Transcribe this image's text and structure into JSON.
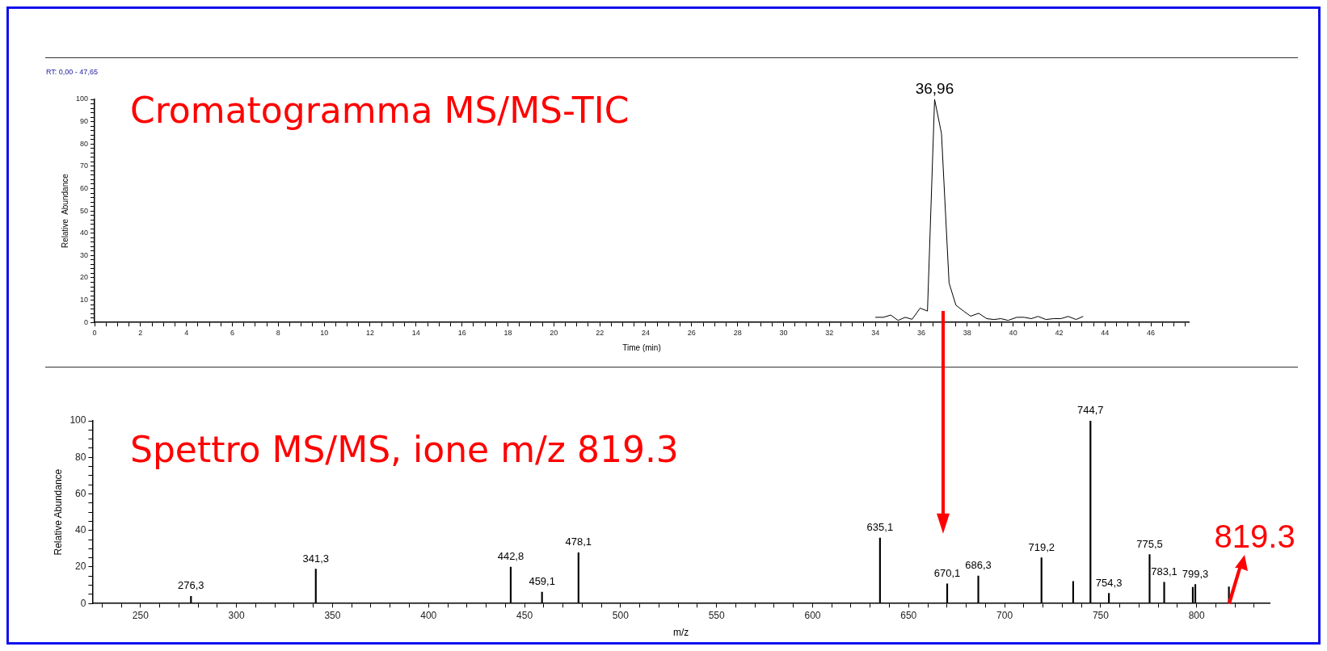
{
  "chart_data": [
    {
      "type": "line",
      "title": "Cromatogramma MS/MS-TIC",
      "xlabel": "Time (min)",
      "ylabel": "Relative  Abundance",
      "annotations": [
        "RT: 0,00 - 47,65",
        {
          "text": "36,96",
          "x": 36.58,
          "y": 100
        }
      ],
      "x": [
        34.0,
        34.35,
        34.67,
        34.99,
        35.3,
        35.6,
        35.95,
        36.27,
        36.58,
        36.88,
        37.21,
        37.51,
        37.84,
        38.15,
        38.5,
        38.85,
        39.16,
        39.47,
        39.78,
        40.16,
        40.48,
        40.79,
        41.09,
        41.43,
        41.76,
        42.08,
        42.4,
        42.74,
        43.05
      ],
      "values": [
        2.3,
        2.3,
        3.3,
        0.9,
        2.3,
        1.4,
        6.4,
        5.1,
        100,
        84.7,
        17.7,
        7.7,
        5.1,
        2.8,
        4.1,
        1.7,
        1.3,
        1.7,
        0.9,
        2.3,
        2.3,
        1.7,
        2.7,
        1.3,
        1.7,
        1.7,
        2.7,
        1.3,
        2.7
      ],
      "color": "#000000",
      "xlim": [
        0,
        47.65
      ],
      "ylim": [
        0,
        100
      ],
      "xticks": [
        0,
        {
          "value": 0.5,
          "label": null
        },
        {
          "value": 1,
          "label": null
        },
        {
          "value": 1.5,
          "label": null
        },
        2,
        {
          "value": 2.5,
          "label": null
        },
        {
          "value": 3,
          "label": null
        },
        {
          "value": 3.5,
          "label": null
        },
        4,
        {
          "value": 4.5,
          "label": null
        },
        {
          "value": 5,
          "label": null
        },
        {
          "value": 5.5,
          "label": null
        },
        6,
        {
          "value": 6.5,
          "label": null
        },
        {
          "value": 7,
          "label": null
        },
        {
          "value": 7.5,
          "label": null
        },
        8,
        {
          "value": 8.5,
          "label": null
        },
        {
          "value": 9,
          "label": null
        },
        {
          "value": 9.5,
          "label": null
        },
        10,
        {
          "value": 10.5,
          "label": null
        },
        {
          "value": 11,
          "label": null
        },
        {
          "value": 11.5,
          "label": null
        },
        12,
        {
          "value": 12.5,
          "label": null
        },
        {
          "value": 13,
          "label": null
        },
        {
          "value": 13.5,
          "label": null
        },
        14,
        {
          "value": 14.5,
          "label": null
        },
        {
          "value": 15,
          "label": null
        },
        {
          "value": 15.5,
          "label": null
        },
        16,
        {
          "value": 16.5,
          "label": null
        },
        {
          "value": 17,
          "label": null
        },
        {
          "value": 17.5,
          "label": null
        },
        18,
        {
          "value": 18.5,
          "label": null
        },
        {
          "value": 19,
          "label": null
        },
        {
          "value": 19.5,
          "label": null
        },
        20,
        {
          "value": 20.5,
          "label": null
        },
        {
          "value": 21,
          "label": null
        },
        {
          "value": 21.5,
          "label": null
        },
        22,
        {
          "value": 22.5,
          "label": null
        },
        {
          "value": 23,
          "label": null
        },
        {
          "value": 23.5,
          "label": null
        },
        24,
        {
          "value": 24.5,
          "label": null
        },
        {
          "value": 25,
          "label": null
        },
        {
          "value": 25.5,
          "label": null
        },
        26,
        {
          "value": 26.5,
          "label": null
        },
        {
          "value": 27,
          "label": null
        },
        {
          "value": 27.5,
          "label": null
        },
        28,
        {
          "value": 28.5,
          "label": null
        },
        {
          "value": 29,
          "label": null
        },
        {
          "value": 29.5,
          "label": null
        },
        30,
        {
          "value": 30.5,
          "label": null
        },
        {
          "value": 31,
          "label": null
        },
        {
          "value": 31.5,
          "label": null
        },
        32,
        {
          "value": 32.5,
          "label": null
        },
        {
          "value": 33,
          "label": null
        },
        {
          "value": 33.5,
          "label": null
        },
        34,
        {
          "value": 34.5,
          "label": null
        },
        {
          "value": 35,
          "label": null
        },
        {
          "value": 35.5,
          "label": null
        },
        36,
        {
          "value": 36.5,
          "label": null
        },
        {
          "value": 37,
          "label": null
        },
        {
          "value": 37.5,
          "label": null
        },
        38,
        {
          "value": 38.5,
          "label": null
        },
        {
          "value": 39,
          "label": null
        },
        {
          "value": 39.5,
          "label": null
        },
        40,
        {
          "value": 40.5,
          "label": null
        },
        {
          "value": 41,
          "label": null
        },
        {
          "value": 41.5,
          "label": null
        },
        42,
        {
          "value": 42.5,
          "label": null
        },
        {
          "value": 43,
          "label": null
        },
        {
          "value": 43.5,
          "label": null
        },
        44,
        {
          "value": 44.5,
          "label": null
        },
        {
          "value": 45,
          "label": null
        },
        {
          "value": 45.5,
          "label": null
        },
        46,
        {
          "value": 46.5,
          "label": null
        },
        {
          "value": 47,
          "label": null
        },
        {
          "value": 47.5,
          "label": null
        }
      ],
      "yticks": [
        0,
        {
          "value": 2,
          "label": null
        },
        {
          "value": 4,
          "label": null
        },
        {
          "value": 6,
          "label": null
        },
        {
          "value": 8,
          "label": null
        },
        10,
        {
          "value": 12,
          "label": null
        },
        {
          "value": 14,
          "label": null
        },
        {
          "value": 16,
          "label": null
        },
        {
          "value": 18,
          "label": null
        },
        20,
        {
          "value": 22,
          "label": null
        },
        {
          "value": 24,
          "label": null
        },
        {
          "value": 26,
          "label": null
        },
        {
          "value": 28,
          "label": null
        },
        30,
        {
          "value": 32,
          "label": null
        },
        {
          "value": 34,
          "label": null
        },
        {
          "value": 36,
          "label": null
        },
        {
          "value": 38,
          "label": null
        },
        40,
        {
          "value": 42,
          "label": null
        },
        {
          "value": 44,
          "label": null
        },
        {
          "value": 46,
          "label": null
        },
        {
          "value": 48,
          "label": null
        },
        50,
        {
          "value": 52,
          "label": null
        },
        {
          "value": 54,
          "label": null
        },
        {
          "value": 56,
          "label": null
        },
        {
          "value": 58,
          "label": null
        },
        60,
        {
          "value": 62,
          "label": null
        },
        {
          "value": 64,
          "label": null
        },
        {
          "value": 66,
          "label": null
        },
        {
          "value": 68,
          "label": null
        },
        70,
        {
          "value": 72,
          "label": null
        },
        {
          "value": 74,
          "label": null
        },
        {
          "value": 76,
          "label": null
        },
        {
          "value": 78,
          "label": null
        },
        80,
        {
          "value": 82,
          "label": null
        },
        {
          "value": 84,
          "label": null
        },
        {
          "value": 86,
          "label": null
        },
        {
          "value": 88,
          "label": null
        },
        90,
        {
          "value": 92,
          "label": null
        },
        {
          "value": 94,
          "label": null
        },
        {
          "value": 96,
          "label": null
        },
        {
          "value": 98,
          "label": null
        },
        100
      ]
    },
    {
      "type": "bar",
      "title": "Spettro MS/MS, ione m/z 819.3",
      "xlabel": "m/z",
      "ylabel": "Relative Abundance",
      "annotations": [
        {
          "text": "819.3",
          "x": 816.8,
          "y": 9.1
        },
        {
          "text": "276,3",
          "x": 276.3,
          "y": 3.9
        },
        {
          "text": "341,3",
          "x": 341.3,
          "y": 18.8
        },
        {
          "text": "442,8",
          "x": 442.8,
          "y": 19.9
        },
        {
          "text": "459,1",
          "x": 459.1,
          "y": 6.2
        },
        {
          "text": "478,1",
          "x": 478.1,
          "y": 27.8
        },
        {
          "text": "635,1",
          "x": 635.1,
          "y": 35.9
        },
        {
          "text": "670,1",
          "x": 670.1,
          "y": 10.8
        },
        {
          "text": "686,3",
          "x": 686.3,
          "y": 15.1
        },
        {
          "text": "719,2",
          "x": 719.2,
          "y": 25
        },
        {
          "text": "744,7",
          "x": 744.7,
          "y": 100
        },
        {
          "text": "754,3",
          "x": 754.3,
          "y": 5.6
        },
        {
          "text": "775,5",
          "x": 775.5,
          "y": 26.8
        },
        {
          "text": "783,1",
          "x": 783.1,
          "y": 11.7
        },
        {
          "text": "799,3",
          "x": 799.3,
          "y": 10.4
        }
      ],
      "x": [
        276.3,
        341.3,
        442.8,
        459.1,
        478.1,
        635.1,
        670.1,
        686.3,
        719.2,
        735.7,
        744.7,
        754.3,
        775.5,
        783.1,
        798.0,
        799.3,
        816.8
      ],
      "values": [
        3.9,
        18.8,
        19.9,
        6.2,
        27.8,
        35.9,
        10.8,
        15.1,
        25,
        12.1,
        100,
        5.6,
        26.8,
        11.7,
        8.9,
        10.4,
        9.1
      ],
      "color": "#000000",
      "xlim": [
        225,
        838
      ],
      "ylim": [
        0,
        100
      ],
      "xticks": [
        {
          "value": 230,
          "label": null
        },
        {
          "value": 240,
          "label": null
        },
        250,
        {
          "value": 260,
          "label": null
        },
        {
          "value": 270,
          "label": null
        },
        {
          "value": 280,
          "label": null
        },
        {
          "value": 290,
          "label": null
        },
        300,
        {
          "value": 310,
          "label": null
        },
        {
          "value": 320,
          "label": null
        },
        {
          "value": 330,
          "label": null
        },
        {
          "value": 340,
          "label": null
        },
        350,
        {
          "value": 360,
          "label": null
        },
        {
          "value": 370,
          "label": null
        },
        {
          "value": 380,
          "label": null
        },
        {
          "value": 390,
          "label": null
        },
        400,
        {
          "value": 410,
          "label": null
        },
        {
          "value": 420,
          "label": null
        },
        {
          "value": 430,
          "label": null
        },
        {
          "value": 440,
          "label": null
        },
        450,
        {
          "value": 460,
          "label": null
        },
        {
          "value": 470,
          "label": null
        },
        {
          "value": 480,
          "label": null
        },
        {
          "value": 490,
          "label": null
        },
        500,
        {
          "value": 510,
          "label": null
        },
        {
          "value": 520,
          "label": null
        },
        {
          "value": 530,
          "label": null
        },
        {
          "value": 540,
          "label": null
        },
        550,
        {
          "value": 560,
          "label": null
        },
        {
          "value": 570,
          "label": null
        },
        {
          "value": 580,
          "label": null
        },
        {
          "value": 590,
          "label": null
        },
        600,
        {
          "value": 610,
          "label": null
        },
        {
          "value": 620,
          "label": null
        },
        {
          "value": 630,
          "label": null
        },
        {
          "value": 640,
          "label": null
        },
        650,
        {
          "value": 660,
          "label": null
        },
        {
          "value": 670,
          "label": null
        },
        {
          "value": 680,
          "label": null
        },
        {
          "value": 690,
          "label": null
        },
        700,
        {
          "value": 710,
          "label": null
        },
        {
          "value": 720,
          "label": null
        },
        {
          "value": 730,
          "label": null
        },
        {
          "value": 740,
          "label": null
        },
        750,
        {
          "value": 760,
          "label": null
        },
        {
          "value": 770,
          "label": null
        },
        {
          "value": 780,
          "label": null
        },
        {
          "value": 790,
          "label": null
        },
        800,
        {
          "value": 810,
          "label": null
        },
        {
          "value": 820,
          "label": null
        },
        {
          "value": 830,
          "label": null
        }
      ],
      "yticks": [
        0,
        {
          "value": 5,
          "label": null
        },
        {
          "value": 10,
          "label": null
        },
        {
          "value": 15,
          "label": null
        },
        20,
        {
          "value": 25,
          "label": null
        },
        {
          "value": 30,
          "label": null
        },
        {
          "value": 35,
          "label": null
        },
        40,
        {
          "value": 45,
          "label": null
        },
        {
          "value": 50,
          "label": null
        },
        {
          "value": 55,
          "label": null
        },
        60,
        {
          "value": 65,
          "label": null
        },
        {
          "value": 70,
          "label": null
        },
        {
          "value": 75,
          "label": null
        },
        80,
        {
          "value": 85,
          "label": null
        },
        {
          "value": 90,
          "label": null
        },
        {
          "value": 95,
          "label": null
        },
        100
      ]
    }
  ]
}
